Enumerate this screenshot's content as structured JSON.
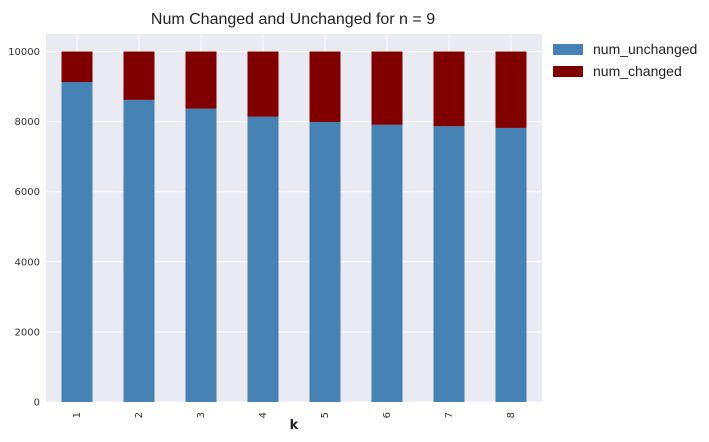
{
  "chart_data": {
    "type": "bar",
    "stacked": true,
    "title": "Num Changed and Unchanged for n = 9",
    "xlabel": "k",
    "ylabel": "",
    "categories": [
      "1",
      "2",
      "3",
      "4",
      "5",
      "6",
      "7",
      "8"
    ],
    "series": [
      {
        "name": "num_unchanged",
        "color": "#4682b4",
        "values": [
          9130,
          8620,
          8370,
          8140,
          7990,
          7910,
          7870,
          7820
        ]
      },
      {
        "name": "num_changed",
        "color": "#800000",
        "values": [
          870,
          1380,
          1630,
          1860,
          2010,
          2090,
          2130,
          2180
        ]
      }
    ],
    "ylim": [
      0,
      10500
    ],
    "yticks": [
      0,
      2000,
      4000,
      6000,
      8000,
      10000
    ],
    "grid": true,
    "background": "#eaeaf2",
    "legend_position": "outside-top-right"
  }
}
